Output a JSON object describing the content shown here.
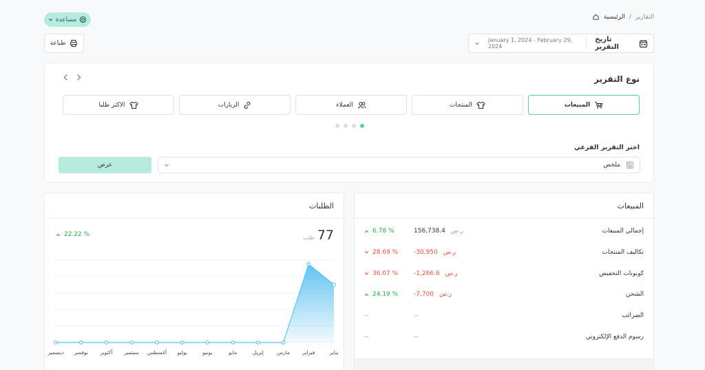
{
  "breadcrumb": {
    "home": "الرئيسية",
    "sep": "/",
    "current": "التقارير"
  },
  "help_button": {
    "label": "مساعدة"
  },
  "date_filter": {
    "label": "تاريخ التقرير",
    "value": "January 1, 2024 - February 29, 2024"
  },
  "print_button": {
    "label": "طباعة"
  },
  "report_type": {
    "title": "نوع التقرير",
    "cards": [
      {
        "label": "المبيعات",
        "icon": "cart-icon",
        "selected": true
      },
      {
        "label": "المنتجات",
        "icon": "shirt-icon",
        "selected": false
      },
      {
        "label": "العملاء",
        "icon": "users-icon",
        "selected": false
      },
      {
        "label": "الزيارات",
        "icon": "link-icon",
        "selected": false
      },
      {
        "label": "الاكثر طلبا",
        "icon": "shirt-icon",
        "selected": false
      }
    ],
    "pagination_dots": 4,
    "active_dot": 0,
    "subreport_label": "اختر التقرير الفرعي",
    "subreport_value": "ملخص",
    "show_button": "عرض"
  },
  "sales_card": {
    "title": "المبيعات",
    "rows": [
      {
        "label": "إجمالي المبيعات",
        "amount": "156,738.4",
        "currency": "ر.س",
        "percent": "6.78 %",
        "trend": "up",
        "tone": "neutral"
      },
      {
        "label": "تكاليف المنتجات",
        "amount": "30,950-",
        "currency": "ر.س",
        "percent": "28.69 %",
        "trend": "down",
        "tone": "negative"
      },
      {
        "label": "كوبونات التخفيض",
        "amount": "1,266.6-",
        "currency": "ر.س",
        "percent": "36.07 %",
        "trend": "down",
        "tone": "negative"
      },
      {
        "label": "الشحن",
        "amount": "7,700-",
        "currency": "ر.س",
        "percent": "24.19 %",
        "trend": "up",
        "tone": "negative"
      },
      {
        "label": "الضرائب",
        "amount": "--",
        "currency": "",
        "percent": "--",
        "trend": "none",
        "tone": "empty"
      },
      {
        "label": "رسوم الدفع الإلكتروني",
        "amount": "--",
        "currency": "",
        "percent": "--",
        "trend": "none",
        "tone": "empty"
      }
    ]
  },
  "orders_card": {
    "title": "الطلبات",
    "count": "77",
    "count_unit": "طلب",
    "change": "22.22 %"
  },
  "chart_data": {
    "type": "area",
    "categories": [
      "يناير",
      "فبراير",
      "مارس",
      "إبريل",
      "مايو",
      "يونيو",
      "يوليو",
      "أغسطس",
      "سبتمبر",
      "أكتوبر",
      "نوفمبر",
      "ديسمبر"
    ],
    "values": [
      14,
      19,
      0,
      0,
      0,
      0,
      0,
      0,
      0,
      0,
      0,
      0
    ],
    "ylim": [
      0,
      20
    ],
    "grid": true,
    "color": "#5bc0f0"
  },
  "colors": {
    "accent": "#5cc8b3",
    "accent_light": "#b8ebe0",
    "positive": "#28a745",
    "negative": "#e74c3c"
  }
}
